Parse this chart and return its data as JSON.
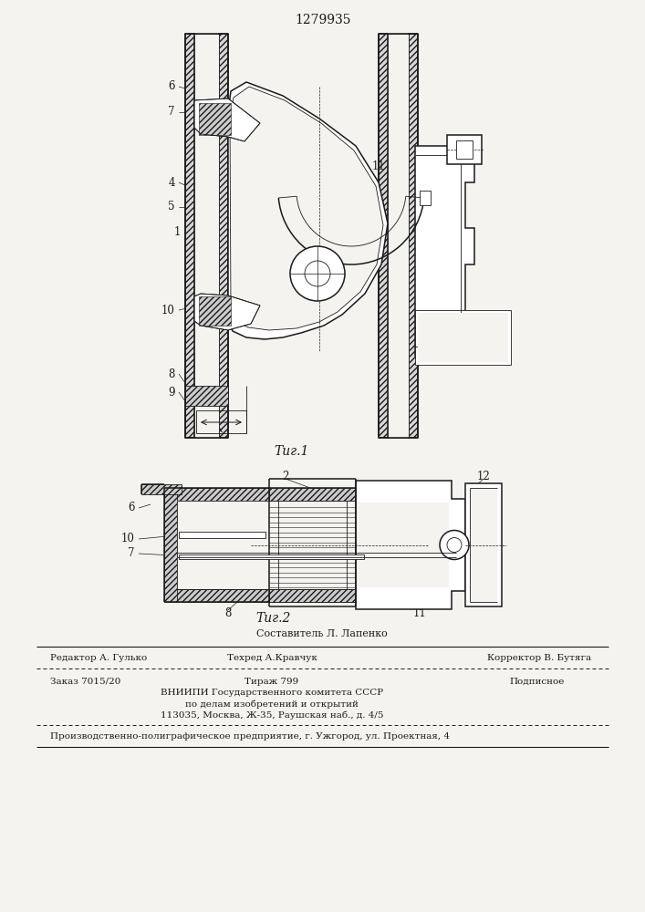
{
  "patent_number": "1279935",
  "fig1_caption": "Τиг.1",
  "fig2_caption": "Τиг.2",
  "composer_line": "Составитель Л. Лапенко",
  "editor_label": "Редактор А. Гулько",
  "techred_label": "Техред А.Кравчук",
  "corrector_label": "Корректор В. Бутяга",
  "order_label": "Заказ 7015/20",
  "tirazh_label": "Тираж 799",
  "podpisnoe_label": "Подписное",
  "vniiipi_line1": "ВНИИПИ Государственного комитета СССР",
  "vniiipi_line2": "по делам изобретений и открытий",
  "vniiipi_line3": "113035, Москва, Ж-35, Раушская наб., д. 4/5",
  "footer_line": "Производственно-полиграфическое предприятие, г. Ужгород, ул. Проектная, 4",
  "bg_color": "#f5f3ef",
  "line_color": "#1a1a1a"
}
